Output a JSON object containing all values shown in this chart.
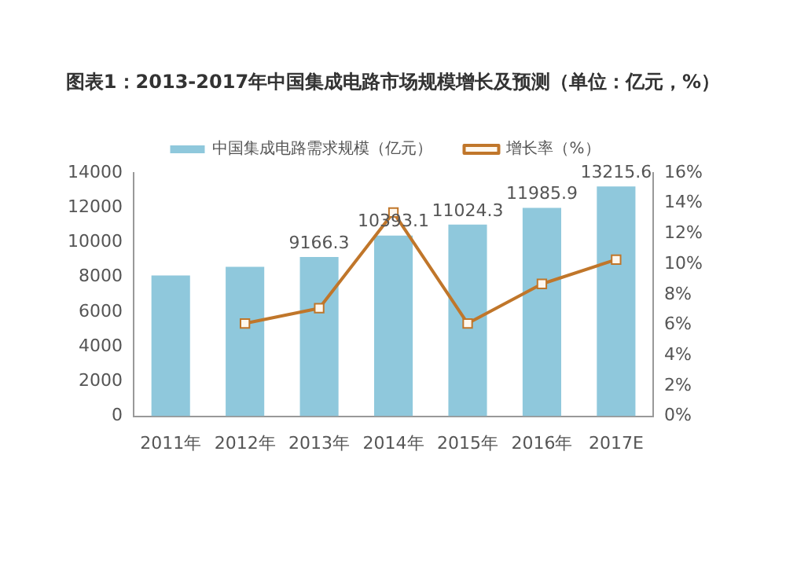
{
  "chart_data": {
    "type": "bar",
    "title": "图表1：2013-2017年中国集成电路市场规模增长及预测（单位：亿元，%）",
    "categories": [
      "2011年",
      "2012年",
      "2013年",
      "2014年",
      "2015年",
      "2016年",
      "2017E"
    ],
    "series": [
      {
        "name": "中国集成电路需求规模（亿元）",
        "color": "#8fc8dc",
        "values": [
          8100,
          8600,
          9166.3,
          10393.1,
          11024.3,
          11985.9,
          13215.6
        ],
        "value_labels": [
          null,
          null,
          "9166.3",
          "10393.1",
          "11024.3",
          "11985.9",
          "13215.6"
        ]
      },
      {
        "name": "增长率（%）",
        "type": "line",
        "axis": "y2",
        "color": "#c0762a",
        "values": [
          null,
          6.1,
          7.1,
          13.4,
          6.1,
          8.7,
          10.3
        ]
      }
    ],
    "ylim": [
      0,
      14000
    ],
    "yticks": [
      0,
      2000,
      4000,
      6000,
      8000,
      10000,
      12000,
      14000
    ],
    "y2lim": [
      0,
      16
    ],
    "y2ticks": [
      {
        "value": 0,
        "label": "0%"
      },
      {
        "value": 2,
        "label": "2%"
      },
      {
        "value": 4,
        "label": "4%"
      },
      {
        "value": 6,
        "label": "6%"
      },
      {
        "value": 8,
        "label": "8%"
      },
      {
        "value": 10,
        "label": "10%"
      },
      {
        "value": 12,
        "label": "12%"
      },
      {
        "value": 14,
        "label": "14%"
      },
      {
        "value": 16,
        "label": "16%"
      }
    ],
    "grid": false,
    "legend": "top",
    "marker": "square",
    "line_style": "solid"
  }
}
